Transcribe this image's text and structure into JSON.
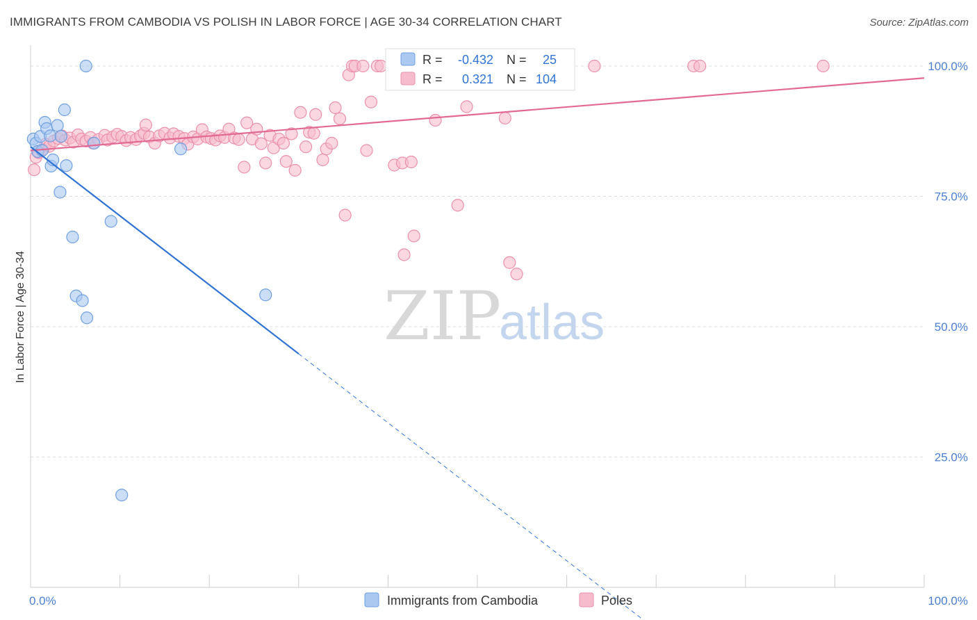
{
  "header": {
    "title": "IMMIGRANTS FROM CAMBODIA VS POLISH IN LABOR FORCE | AGE 30-34 CORRELATION CHART",
    "source": "Source: ZipAtlas.com"
  },
  "colors": {
    "blue_fill": "#aac8f0",
    "blue_stroke": "#6f9fe0",
    "blue_line": "#2f74d4",
    "pink_fill": "#f6bccd",
    "pink_stroke": "#ea8fab",
    "pink_line": "#e26993",
    "tick_text": "#4a7fd0",
    "grid": "#dddddd"
  },
  "watermark": {
    "zip": "ZIP",
    "atlas": "atlas"
  },
  "chart_data": {
    "type": "scatter",
    "title": "IMMIGRANTS FROM CAMBODIA VS POLISH IN LABOR FORCE | AGE 30-34 CORRELATION CHART",
    "xlabel": "",
    "ylabel": "In Labor Force | Age 30-34",
    "xlim": [
      0,
      100
    ],
    "ylim": [
      0,
      104
    ],
    "x_tick_labels": [
      {
        "value": 0,
        "label": "0.0%"
      },
      {
        "value": 100,
        "label": "100.0%"
      }
    ],
    "y_tick_labels": [
      {
        "value": 25,
        "label": "25.0%"
      },
      {
        "value": 50,
        "label": "50.0%"
      },
      {
        "value": 75,
        "label": "75.0%"
      },
      {
        "value": 100,
        "label": "100.0%"
      }
    ],
    "grid": true,
    "legend_position": "bottom",
    "stats_box": {
      "rows": [
        {
          "series": "Immigrants from Cambodia",
          "r_label": "R =",
          "r_value": "-0.432",
          "n_label": "N =",
          "n_value": "25"
        },
        {
          "series": "Poles",
          "r_label": "R =",
          "r_value": "0.321",
          "n_label": "N =",
          "n_value": "104"
        }
      ]
    },
    "series": [
      {
        "name": "Immigrants from Cambodia",
        "color": "blue",
        "trend": {
          "x0": 0,
          "y0": 84.5,
          "x1": 30,
          "y1": 44.8,
          "dash_to_x": 70
        },
        "points": [
          [
            0.3,
            86.0
          ],
          [
            0.6,
            85.2
          ],
          [
            0.8,
            83.6
          ],
          [
            1.1,
            86.5
          ],
          [
            1.3,
            83.8
          ],
          [
            1.6,
            89.2
          ],
          [
            1.8,
            88.0
          ],
          [
            2.2,
            86.6
          ],
          [
            2.3,
            80.8
          ],
          [
            2.5,
            82.0
          ],
          [
            3.0,
            88.6
          ],
          [
            3.3,
            75.8
          ],
          [
            3.4,
            86.5
          ],
          [
            3.8,
            91.6
          ],
          [
            4.0,
            80.9
          ],
          [
            4.7,
            67.2
          ],
          [
            5.1,
            55.9
          ],
          [
            5.8,
            55.0
          ],
          [
            6.3,
            51.7
          ],
          [
            6.2,
            100.0
          ],
          [
            7.1,
            85.2
          ],
          [
            9.0,
            70.2
          ],
          [
            10.2,
            17.7
          ],
          [
            16.8,
            84.1
          ],
          [
            26.3,
            56.1
          ]
        ]
      },
      {
        "name": "Poles",
        "color": "pink",
        "trend": {
          "x0": 0,
          "y0": 83.8,
          "x1": 100,
          "y1": 97.7
        },
        "points": [
          [
            0.4,
            80.1
          ],
          [
            0.6,
            82.5
          ],
          [
            0.9,
            83.4
          ],
          [
            1.4,
            84.0
          ],
          [
            1.7,
            85.0
          ],
          [
            2.1,
            84.6
          ],
          [
            2.6,
            85.6
          ],
          [
            3.1,
            86.1
          ],
          [
            3.5,
            86.6
          ],
          [
            3.9,
            85.8
          ],
          [
            4.4,
            86.2
          ],
          [
            4.8,
            85.4
          ],
          [
            5.3,
            86.8
          ],
          [
            5.7,
            86.0
          ],
          [
            6.2,
            85.6
          ],
          [
            6.7,
            86.3
          ],
          [
            7.0,
            85.2
          ],
          [
            7.6,
            85.9
          ],
          [
            8.3,
            86.7
          ],
          [
            8.6,
            85.8
          ],
          [
            9.2,
            86.4
          ],
          [
            9.7,
            86.9
          ],
          [
            10.2,
            86.5
          ],
          [
            10.7,
            85.7
          ],
          [
            11.2,
            86.3
          ],
          [
            11.8,
            85.9
          ],
          [
            12.3,
            86.6
          ],
          [
            12.7,
            87.1
          ],
          [
            12.9,
            88.7
          ],
          [
            13.3,
            86.4
          ],
          [
            13.9,
            85.2
          ],
          [
            14.4,
            86.6
          ],
          [
            15.0,
            87.1
          ],
          [
            15.6,
            86.2
          ],
          [
            16.0,
            87.0
          ],
          [
            16.6,
            86.5
          ],
          [
            17.2,
            86.1
          ],
          [
            17.6,
            85.0
          ],
          [
            18.2,
            86.4
          ],
          [
            18.7,
            86.0
          ],
          [
            19.2,
            87.8
          ],
          [
            19.7,
            86.4
          ],
          [
            20.2,
            86.1
          ],
          [
            20.7,
            85.8
          ],
          [
            21.2,
            86.6
          ],
          [
            21.7,
            86.3
          ],
          [
            22.2,
            87.9
          ],
          [
            22.8,
            86.2
          ],
          [
            23.3,
            85.9
          ],
          [
            23.9,
            80.6
          ],
          [
            24.2,
            89.1
          ],
          [
            24.8,
            86.0
          ],
          [
            25.3,
            87.9
          ],
          [
            25.8,
            85.1
          ],
          [
            26.3,
            81.4
          ],
          [
            26.8,
            86.7
          ],
          [
            27.2,
            84.3
          ],
          [
            27.8,
            86.0
          ],
          [
            28.3,
            85.2
          ],
          [
            28.6,
            81.7
          ],
          [
            29.2,
            87.0
          ],
          [
            29.6,
            80.0
          ],
          [
            30.2,
            91.1
          ],
          [
            30.8,
            84.5
          ],
          [
            31.2,
            87.3
          ],
          [
            31.7,
            87.1
          ],
          [
            31.9,
            90.7
          ],
          [
            32.7,
            82.0
          ],
          [
            33.1,
            84.1
          ],
          [
            33.7,
            85.2
          ],
          [
            34.1,
            92.0
          ],
          [
            34.6,
            89.9
          ],
          [
            35.2,
            71.4
          ],
          [
            35.6,
            98.3
          ],
          [
            36.0,
            100.0
          ],
          [
            36.3,
            100.0
          ],
          [
            37.2,
            100.0
          ],
          [
            37.6,
            83.8
          ],
          [
            38.1,
            93.1
          ],
          [
            38.8,
            100.0
          ],
          [
            39.2,
            100.0
          ],
          [
            40.7,
            81.0
          ],
          [
            41.2,
            100.0
          ],
          [
            41.6,
            81.4
          ],
          [
            41.8,
            63.8
          ],
          [
            42.3,
            100.0
          ],
          [
            42.6,
            81.6
          ],
          [
            42.9,
            67.4
          ],
          [
            43.2,
            100.0
          ],
          [
            44.4,
            100.0
          ],
          [
            45.3,
            89.6
          ],
          [
            46.2,
            100.0
          ],
          [
            47.8,
            73.3
          ],
          [
            48.8,
            92.2
          ],
          [
            50.0,
            100.0
          ],
          [
            53.1,
            90.0
          ],
          [
            53.6,
            62.3
          ],
          [
            54.4,
            60.1
          ],
          [
            56.5,
            100.0
          ],
          [
            58.1,
            100.0
          ],
          [
            63.1,
            100.0
          ],
          [
            74.2,
            100.0
          ],
          [
            74.9,
            100.0
          ],
          [
            88.7,
            100.0
          ]
        ]
      }
    ]
  },
  "legend": [
    {
      "label": "Immigrants from Cambodia",
      "color": "blue"
    },
    {
      "label": "Poles",
      "color": "pink"
    }
  ]
}
